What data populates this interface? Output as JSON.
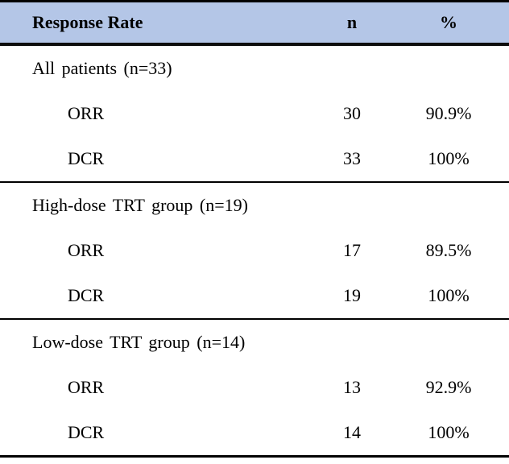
{
  "table": {
    "header": {
      "response_rate": "Response Rate",
      "n": "n",
      "percent": "%"
    },
    "colors": {
      "header_bg": "#b4c6e7",
      "border": "#000000",
      "text": "#000000"
    },
    "sections": [
      {
        "label": "All patients (n=33)",
        "rows": [
          {
            "name": "ORR",
            "n": "30",
            "pct": "90.9%"
          },
          {
            "name": "DCR",
            "n": "33",
            "pct": "100%"
          }
        ]
      },
      {
        "label": "High-dose TRT group (n=19)",
        "rows": [
          {
            "name": "ORR",
            "n": "17",
            "pct": "89.5%"
          },
          {
            "name": "DCR",
            "n": "19",
            "pct": "100%"
          }
        ]
      },
      {
        "label": "Low-dose TRT group (n=14)",
        "rows": [
          {
            "name": "ORR",
            "n": "13",
            "pct": "92.9%"
          },
          {
            "name": "DCR",
            "n": "14",
            "pct": "100%"
          }
        ]
      }
    ]
  },
  "chart_data": {
    "type": "table",
    "title": "Response Rate",
    "columns": [
      "Response Rate",
      "n",
      "%"
    ],
    "rows": [
      [
        "All patients (n=33)",
        "",
        ""
      ],
      [
        "ORR",
        30,
        "90.9%"
      ],
      [
        "DCR",
        33,
        "100%"
      ],
      [
        "High-dose TRT group (n=19)",
        "",
        ""
      ],
      [
        "ORR",
        17,
        "89.5%"
      ],
      [
        "DCR",
        19,
        "100%"
      ],
      [
        "Low-dose TRT group (n=14)",
        "",
        ""
      ],
      [
        "ORR",
        13,
        "92.9%"
      ],
      [
        "DCR",
        14,
        "100%"
      ]
    ]
  }
}
